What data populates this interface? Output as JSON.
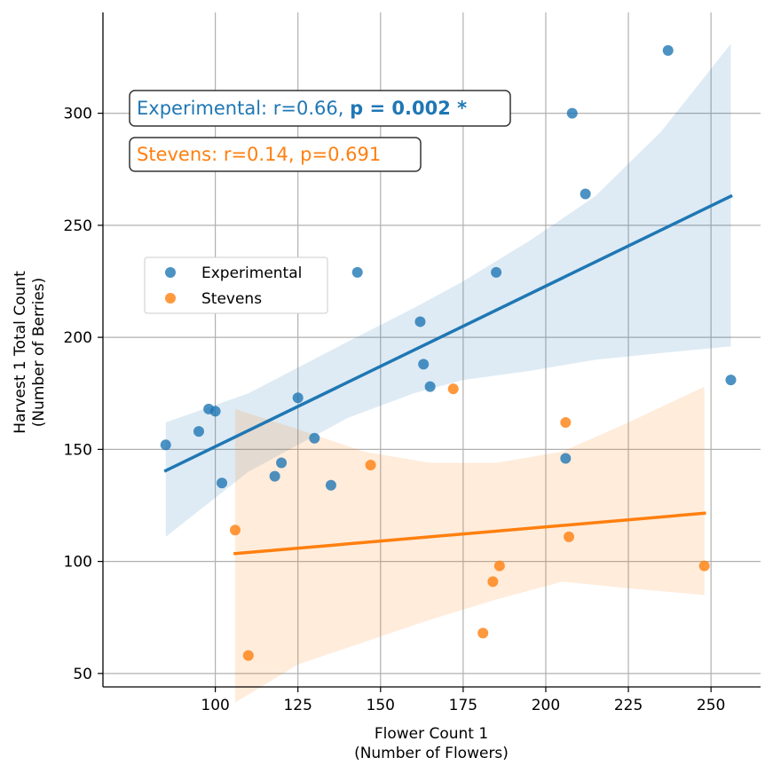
{
  "chart_data": {
    "type": "scatter",
    "xlabel": "Flower Count 1",
    "xlabel_sub": "(Number of Flowers)",
    "ylabel": "Harvest 1 Total Count",
    "ylabel_sub": "(Number of Berries)",
    "xlim": [
      66,
      265
    ],
    "ylim": [
      44,
      345
    ],
    "xticks": [
      100,
      125,
      150,
      175,
      200,
      225,
      250
    ],
    "yticks": [
      50,
      100,
      150,
      200,
      250,
      300
    ],
    "grid": true,
    "legend_position": "upper-left",
    "series": [
      {
        "name": "Experimental",
        "color": "#1f77b4",
        "points": [
          [
            85,
            152
          ],
          [
            95,
            158
          ],
          [
            98,
            168
          ],
          [
            100,
            167
          ],
          [
            102,
            135
          ],
          [
            118,
            138
          ],
          [
            120,
            144
          ],
          [
            125,
            173
          ],
          [
            130,
            155
          ],
          [
            135,
            134
          ],
          [
            143,
            229
          ],
          [
            162,
            207
          ],
          [
            163,
            188
          ],
          [
            165,
            178
          ],
          [
            185,
            229
          ],
          [
            206,
            146
          ],
          [
            208,
            300
          ],
          [
            212,
            264
          ],
          [
            237,
            328
          ],
          [
            256,
            181
          ]
        ],
        "fit": {
          "x": [
            85,
            256
          ],
          "y": [
            140.5,
            263
          ]
        },
        "ci_upper": [
          [
            85,
            162
          ],
          [
            110,
            175
          ],
          [
            140,
            198
          ],
          [
            160,
            213
          ],
          [
            175,
            225
          ],
          [
            195,
            243
          ],
          [
            215,
            263
          ],
          [
            235,
            292
          ],
          [
            256,
            331
          ]
        ],
        "ci_lower": [
          [
            85,
            111
          ],
          [
            110,
            140
          ],
          [
            140,
            164
          ],
          [
            160,
            175
          ],
          [
            175,
            181
          ],
          [
            195,
            185
          ],
          [
            215,
            190
          ],
          [
            235,
            193
          ],
          [
            256,
            196
          ]
        ]
      },
      {
        "name": "Stevens",
        "color": "#ff7f0e",
        "points": [
          [
            106,
            114
          ],
          [
            110,
            58
          ],
          [
            147,
            143
          ],
          [
            172,
            177
          ],
          [
            181,
            68
          ],
          [
            184,
            91
          ],
          [
            186,
            98
          ],
          [
            206,
            162
          ],
          [
            207,
            111
          ],
          [
            248,
            98
          ]
        ],
        "fit": {
          "x": [
            106,
            248
          ],
          "y": [
            103.5,
            121.5
          ]
        },
        "ci_upper": [
          [
            106,
            168
          ],
          [
            125,
            159
          ],
          [
            145,
            149
          ],
          [
            165,
            144
          ],
          [
            185,
            144
          ],
          [
            205,
            149
          ],
          [
            225,
            162
          ],
          [
            248,
            178
          ]
        ],
        "ci_lower": [
          [
            106,
            37
          ],
          [
            125,
            54
          ],
          [
            145,
            64
          ],
          [
            165,
            74
          ],
          [
            185,
            83
          ],
          [
            205,
            91
          ],
          [
            225,
            88
          ],
          [
            248,
            85
          ]
        ]
      }
    ],
    "annotations": [
      {
        "name": "Experimental",
        "text_prefix": "Experimental: r=0.66, ",
        "text_bold": "p = 0.002 *",
        "color": "#1f77b4"
      },
      {
        "name": "Stevens",
        "text_prefix": "Stevens: r=0.14, p=0.691",
        "text_bold": "",
        "color": "#ff7f0e"
      }
    ]
  }
}
